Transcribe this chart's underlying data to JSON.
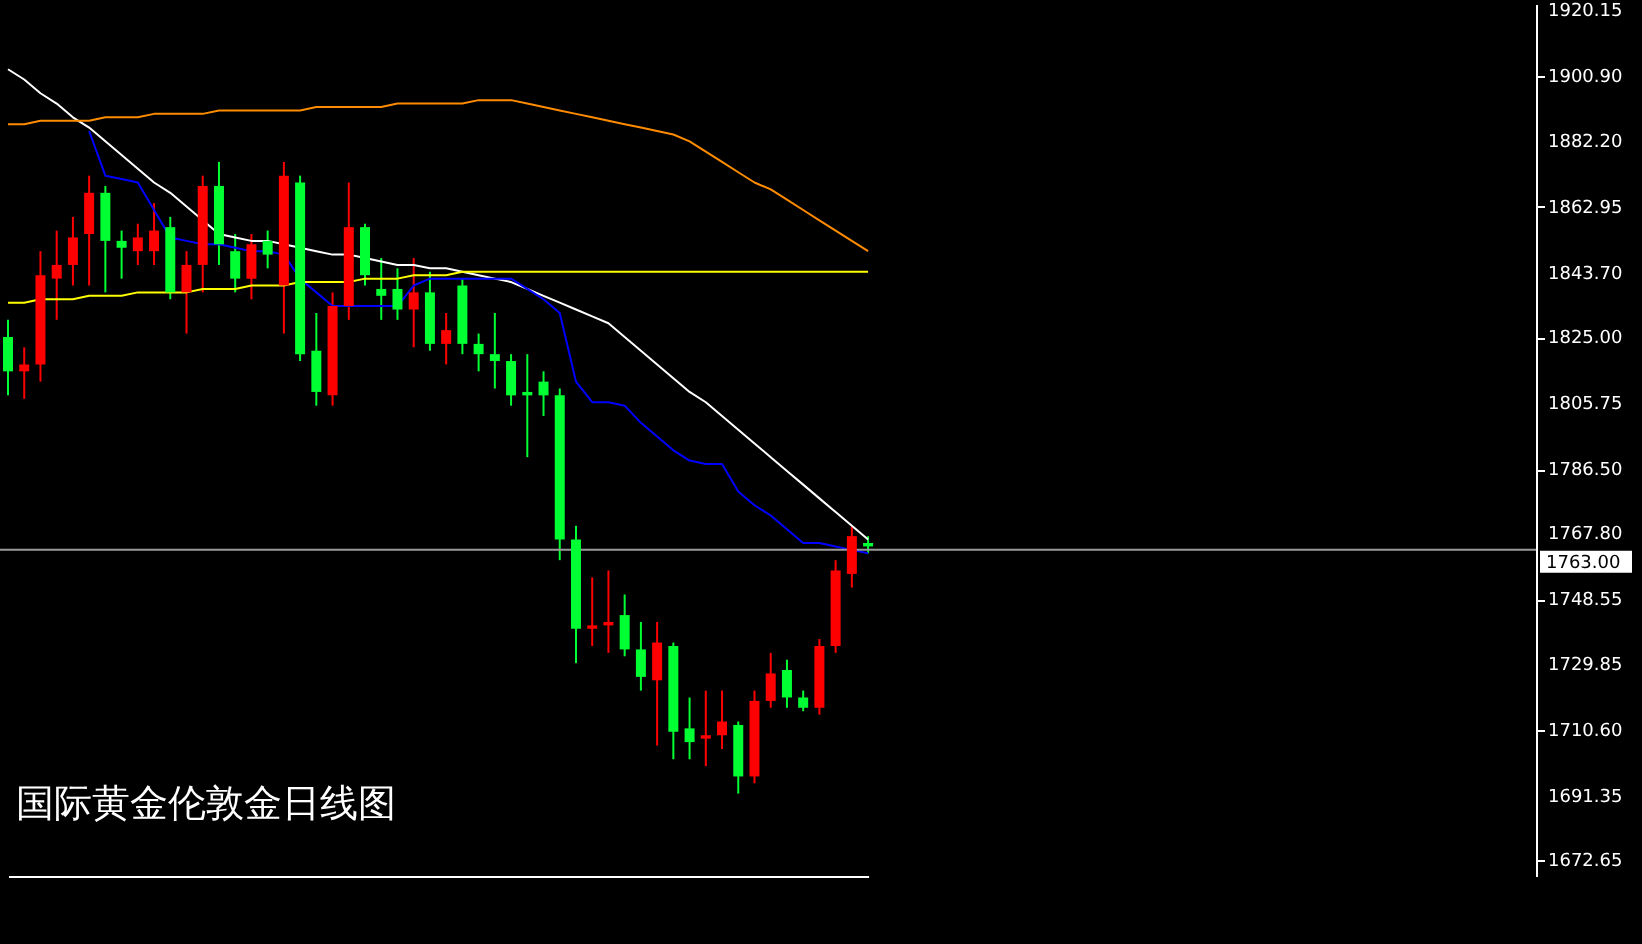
{
  "chart_data": {
    "type": "candlestick",
    "annotations": [
      "国际黄金伦敦金日线图"
    ],
    "categories": [
      null,
      null,
      null,
      null,
      null,
      null,
      null,
      null,
      null,
      null,
      null,
      null,
      null,
      null,
      null,
      null,
      null,
      null,
      null,
      null,
      null,
      null,
      null,
      null,
      null,
      null,
      null,
      null,
      null,
      null,
      null,
      null,
      null,
      null,
      null,
      null,
      null,
      null,
      null,
      null,
      null,
      null,
      null,
      null,
      null,
      null,
      null,
      null,
      null,
      null,
      null,
      null,
      null,
      null
    ],
    "ohlc": [
      [
        1825,
        1830,
        1808,
        1815
      ],
      [
        1815,
        1822,
        1807,
        1817
      ],
      [
        1817,
        1850,
        1812,
        1843
      ],
      [
        1842,
        1856,
        1830,
        1846
      ],
      [
        1846,
        1860,
        1840,
        1854
      ],
      [
        1855,
        1872,
        1840,
        1867
      ],
      [
        1867,
        1869,
        1838,
        1853
      ],
      [
        1853,
        1856,
        1842,
        1851
      ],
      [
        1850,
        1858,
        1846,
        1854
      ],
      [
        1850,
        1864,
        1846,
        1856
      ],
      [
        1857,
        1860,
        1836,
        1838
      ],
      [
        1838,
        1850,
        1826,
        1846
      ],
      [
        1846,
        1872,
        1838,
        1869
      ],
      [
        1869,
        1876,
        1846,
        1852
      ],
      [
        1850,
        1855,
        1838,
        1842
      ],
      [
        1842,
        1855,
        1836,
        1852
      ],
      [
        1853,
        1856,
        1845,
        1849
      ],
      [
        1840,
        1876,
        1826,
        1872
      ],
      [
        1870,
        1872,
        1818,
        1820
      ],
      [
        1821,
        1832,
        1805,
        1809
      ],
      [
        1808,
        1838,
        1805,
        1834
      ],
      [
        1834,
        1870,
        1830,
        1857
      ],
      [
        1857,
        1858,
        1840,
        1843
      ],
      [
        1839,
        1848,
        1830,
        1837
      ],
      [
        1839,
        1845,
        1830,
        1833
      ],
      [
        1833,
        1848,
        1822,
        1838
      ],
      [
        1838,
        1844,
        1821,
        1823
      ],
      [
        1823,
        1832,
        1817,
        1827
      ],
      [
        1840,
        1842,
        1820,
        1823
      ],
      [
        1823,
        1826,
        1815,
        1820
      ],
      [
        1820,
        1832,
        1810,
        1818
      ],
      [
        1818,
        1820,
        1805,
        1808
      ],
      [
        1809,
        1820,
        1790,
        1808
      ],
      [
        1812,
        1815,
        1802,
        1808
      ],
      [
        1808,
        1810,
        1760,
        1766
      ],
      [
        1766,
        1770,
        1730,
        1740
      ],
      [
        1740,
        1755,
        1735,
        1741
      ],
      [
        1741,
        1757,
        1733,
        1742
      ],
      [
        1744,
        1750,
        1732,
        1734
      ],
      [
        1734,
        1742,
        1722,
        1726
      ],
      [
        1725,
        1742,
        1706,
        1736
      ],
      [
        1735,
        1736,
        1702,
        1710
      ],
      [
        1711,
        1720,
        1702,
        1707
      ],
      [
        1708,
        1722,
        1700,
        1709
      ],
      [
        1709,
        1722,
        1705,
        1713
      ],
      [
        1712,
        1713,
        1692,
        1697
      ],
      [
        1697,
        1722,
        1695,
        1719
      ],
      [
        1719,
        1733,
        1717,
        1727
      ],
      [
        1728,
        1731,
        1717,
        1720
      ],
      [
        1720,
        1722,
        1716,
        1717
      ],
      [
        1717,
        1737,
        1715,
        1735
      ],
      [
        1735,
        1760,
        1733,
        1757
      ],
      [
        1756,
        1770,
        1752,
        1767
      ],
      [
        1765,
        1767,
        1762,
        1764
      ]
    ],
    "colors": [
      "#00ff33",
      "#ff0000",
      "#ff0000",
      "#ff0000",
      "#ff0000",
      "#ff0000",
      "#00ff33",
      "#00ff33",
      "#ff0000",
      "#ff0000",
      "#00ff33",
      "#ff0000",
      "#ff0000",
      "#00ff33",
      "#00ff33",
      "#ff0000",
      "#00ff33",
      "#ff0000",
      "#00ff33",
      "#00ff33",
      "#ff0000",
      "#ff0000",
      "#00ff33",
      "#00ff33",
      "#00ff33",
      "#ff0000",
      "#00ff33",
      "#ff0000",
      "#00ff33",
      "#00ff33",
      "#00ff33",
      "#00ff33",
      "#00ff33",
      "#00ff33",
      "#00ff33",
      "#00ff33",
      "#ff0000",
      "#ff0000",
      "#00ff33",
      "#00ff33",
      "#ff0000",
      "#00ff33",
      "#00ff33",
      "#ff0000",
      "#ff0000",
      "#00ff33",
      "#ff0000",
      "#ff0000",
      "#00ff33",
      "#00ff33",
      "#ff0000",
      "#ff0000",
      "#ff0000",
      "#00ff33"
    ],
    "series": [
      {
        "type": "line",
        "color": "#ffffff",
        "values": [
          1903,
          1900,
          1896,
          1893,
          1889,
          1886,
          1882,
          1878,
          1874,
          1870,
          1867,
          1863,
          1859,
          1855,
          1854,
          1853,
          1853,
          1852,
          1851,
          1850,
          1849,
          1849,
          1848,
          1847,
          1846,
          1846,
          1845,
          1845,
          1844,
          1843,
          1842,
          1841,
          1839,
          1837,
          1835,
          1833,
          1831,
          1829,
          1825,
          1821,
          1817,
          1813,
          1809,
          1806,
          1802,
          1798,
          1794,
          1790,
          1786,
          1782,
          1778,
          1774,
          1770,
          1766
        ]
      },
      {
        "type": "line",
        "color": "#0000ff",
        "values": [
          null,
          null,
          null,
          null,
          null,
          1885,
          1872,
          1871,
          1870,
          1862,
          1854,
          1853,
          1852,
          1852,
          1851,
          1850,
          1850,
          1849,
          1842,
          1838,
          1834,
          1834,
          1834,
          1834,
          1834,
          1840,
          1842,
          1842,
          1842,
          1842,
          1842,
          1842,
          1839,
          1836,
          1832,
          1812,
          1806,
          1806,
          1805,
          1800,
          1796,
          1792,
          1789,
          1788,
          1788,
          1780,
          1776,
          1773,
          1769,
          1765,
          1765,
          1764,
          1763,
          1762
        ]
      },
      {
        "type": "line",
        "color": "#ffff00",
        "values": [
          1835,
          1835,
          1836,
          1836,
          1836,
          1837,
          1837,
          1837,
          1838,
          1838,
          1838,
          1838,
          1839,
          1839,
          1839,
          1840,
          1840,
          1840,
          1841,
          1841,
          1841,
          1841,
          1842,
          1842,
          1842,
          1843,
          1843,
          1843,
          1844,
          1844,
          1844,
          1844,
          1844,
          1844,
          1844,
          1844,
          1844,
          1844,
          1844,
          1844,
          1844,
          1844,
          1844,
          1844,
          1844,
          1844,
          1844,
          1844,
          1844,
          1844,
          1844,
          1844,
          1844,
          1844
        ]
      },
      {
        "type": "line",
        "color": "#ff8c00",
        "values": [
          1887,
          1887,
          1888,
          1888,
          1888,
          1888,
          1889,
          1889,
          1889,
          1890,
          1890,
          1890,
          1890,
          1891,
          1891,
          1891,
          1891,
          1891,
          1891,
          1892,
          1892,
          1892,
          1892,
          1892,
          1893,
          1893,
          1893,
          1893,
          1893,
          1894,
          1894,
          1894,
          1893,
          1892,
          1891,
          1890,
          1889,
          1888,
          1887,
          1886,
          1885,
          1884,
          1882,
          1879,
          1876,
          1873,
          1870,
          1868,
          1865,
          1862,
          1859,
          1856,
          1853,
          1850
        ]
      }
    ],
    "ylim": [
      1668,
      1922
    ],
    "yticks": [
      {
        "value": 1920.15,
        "label": "1920.15"
      },
      {
        "value": 1900.9,
        "label": "1900.90"
      },
      {
        "value": 1882.2,
        "label": "1882.20"
      },
      {
        "value": 1862.95,
        "label": "1862.95"
      },
      {
        "value": 1843.7,
        "label": "1843.70"
      },
      {
        "value": 1825,
        "label": "1825.00"
      },
      {
        "value": 1805.75,
        "label": "1805.75"
      },
      {
        "value": 1786.5,
        "label": "1786.50"
      },
      {
        "value": 1767.8,
        "label": "1767.80"
      },
      {
        "value": 1748.55,
        "label": "1748.55"
      },
      {
        "value": 1729.85,
        "label": "1729.85"
      },
      {
        "value": 1710.6,
        "label": "1710.60"
      },
      {
        "value": 1691.35,
        "label": "1691.35"
      },
      {
        "value": 1672.65,
        "label": "1672.65"
      }
    ],
    "ref_lines": [
      {
        "axis": "y",
        "value": 1763,
        "label": "1763.00",
        "color": "#9a9a9a"
      }
    ],
    "tick_labels": "y",
    "grid": false
  }
}
